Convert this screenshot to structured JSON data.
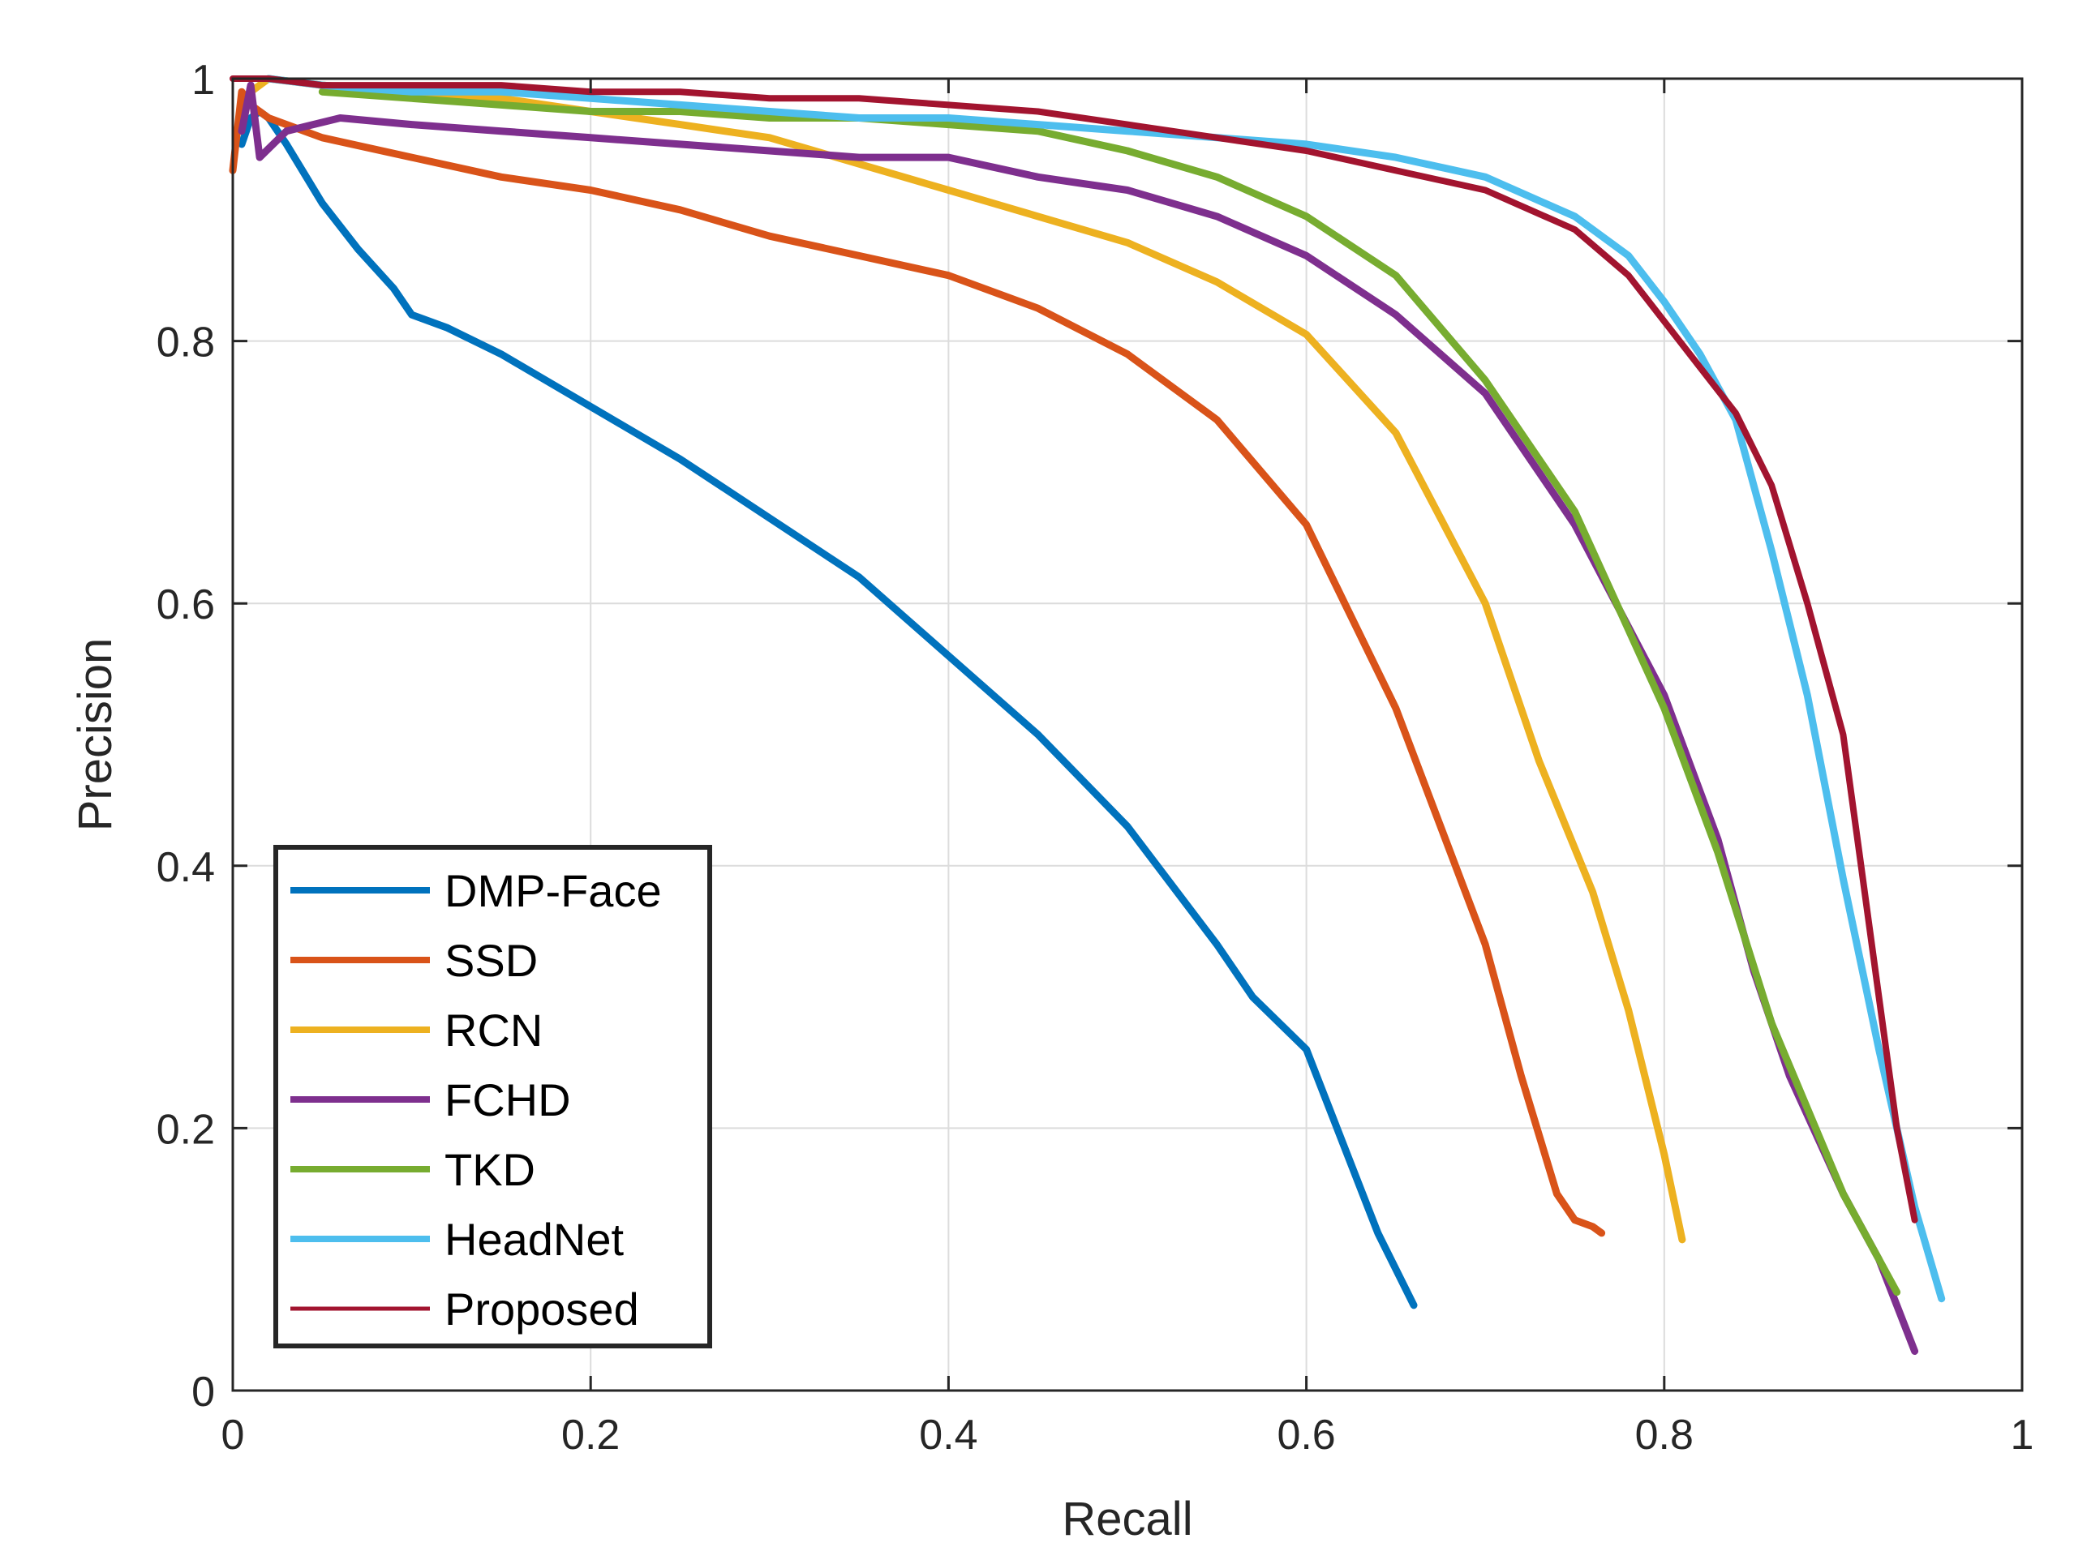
{
  "chart_data": {
    "type": "line",
    "title": "",
    "xlabel": "Recall",
    "ylabel": "Precision",
    "xlim": [
      0,
      1
    ],
    "ylim": [
      0,
      1
    ],
    "xticks": [
      0,
      0.2,
      0.4,
      0.6,
      0.8,
      1
    ],
    "yticks": [
      0,
      0.2,
      0.4,
      0.6,
      0.8,
      1
    ],
    "xtick_labels": [
      "0",
      "0.2",
      "0.4",
      "0.6",
      "0.8",
      "1"
    ],
    "ytick_labels": [
      "0",
      "0.2",
      "0.4",
      "0.6",
      "0.8",
      "1"
    ],
    "grid": true,
    "legend_position": "bottom-left",
    "series": [
      {
        "name": "DMP-Face",
        "color": "#0072BD",
        "x": [
          0.005,
          0.01,
          0.015,
          0.02,
          0.03,
          0.05,
          0.07,
          0.09,
          0.1,
          0.12,
          0.15,
          0.2,
          0.25,
          0.3,
          0.35,
          0.4,
          0.45,
          0.5,
          0.55,
          0.57,
          0.6,
          0.62,
          0.64,
          0.66
        ],
        "y": [
          0.95,
          0.97,
          0.975,
          0.97,
          0.95,
          0.905,
          0.87,
          0.84,
          0.82,
          0.81,
          0.79,
          0.75,
          0.71,
          0.665,
          0.62,
          0.56,
          0.5,
          0.43,
          0.34,
          0.3,
          0.26,
          0.19,
          0.12,
          0.065
        ]
      },
      {
        "name": "SSD",
        "color": "#D95319",
        "x": [
          0.0,
          0.005,
          0.01,
          0.02,
          0.05,
          0.1,
          0.15,
          0.2,
          0.25,
          0.3,
          0.35,
          0.4,
          0.45,
          0.5,
          0.55,
          0.6,
          0.65,
          0.7,
          0.72,
          0.74,
          0.75,
          0.76,
          0.765
        ],
        "y": [
          0.93,
          0.99,
          0.98,
          0.97,
          0.955,
          0.94,
          0.925,
          0.915,
          0.9,
          0.88,
          0.865,
          0.85,
          0.825,
          0.79,
          0.74,
          0.66,
          0.52,
          0.34,
          0.24,
          0.15,
          0.13,
          0.125,
          0.12
        ]
      },
      {
        "name": "RCN",
        "color": "#EDB120",
        "x": [
          0.01,
          0.02,
          0.05,
          0.1,
          0.15,
          0.2,
          0.25,
          0.3,
          0.35,
          0.4,
          0.45,
          0.5,
          0.55,
          0.6,
          0.65,
          0.7,
          0.73,
          0.76,
          0.78,
          0.8,
          0.81
        ],
        "y": [
          0.99,
          1.0,
          0.995,
          0.99,
          0.985,
          0.975,
          0.965,
          0.955,
          0.935,
          0.915,
          0.895,
          0.875,
          0.845,
          0.805,
          0.73,
          0.6,
          0.48,
          0.38,
          0.29,
          0.18,
          0.115
        ]
      },
      {
        "name": "FCHD",
        "color": "#7E2F8E",
        "x": [
          0.005,
          0.01,
          0.015,
          0.03,
          0.06,
          0.1,
          0.15,
          0.2,
          0.25,
          0.3,
          0.35,
          0.4,
          0.45,
          0.5,
          0.55,
          0.6,
          0.65,
          0.7,
          0.75,
          0.8,
          0.83,
          0.85,
          0.87,
          0.9,
          0.92,
          0.94
        ],
        "y": [
          0.96,
          0.995,
          0.94,
          0.96,
          0.97,
          0.965,
          0.96,
          0.955,
          0.95,
          0.945,
          0.94,
          0.94,
          0.925,
          0.915,
          0.895,
          0.865,
          0.82,
          0.76,
          0.66,
          0.53,
          0.42,
          0.32,
          0.24,
          0.15,
          0.1,
          0.03
        ]
      },
      {
        "name": "TKD",
        "color": "#77AC30",
        "x": [
          0.05,
          0.1,
          0.15,
          0.2,
          0.25,
          0.3,
          0.35,
          0.4,
          0.45,
          0.5,
          0.55,
          0.6,
          0.65,
          0.7,
          0.75,
          0.8,
          0.83,
          0.86,
          0.9,
          0.93
        ],
        "y": [
          0.99,
          0.985,
          0.98,
          0.975,
          0.975,
          0.97,
          0.97,
          0.965,
          0.96,
          0.945,
          0.925,
          0.895,
          0.85,
          0.77,
          0.67,
          0.52,
          0.41,
          0.28,
          0.15,
          0.075
        ]
      },
      {
        "name": "HeadNet",
        "color": "#4DBEEE",
        "x": [
          0.02,
          0.05,
          0.1,
          0.15,
          0.2,
          0.25,
          0.3,
          0.35,
          0.4,
          0.45,
          0.5,
          0.55,
          0.6,
          0.65,
          0.7,
          0.75,
          0.78,
          0.8,
          0.82,
          0.84,
          0.86,
          0.88,
          0.9,
          0.92,
          0.94,
          0.955
        ],
        "y": [
          1.0,
          0.995,
          0.99,
          0.99,
          0.985,
          0.98,
          0.975,
          0.97,
          0.97,
          0.965,
          0.96,
          0.955,
          0.95,
          0.94,
          0.925,
          0.895,
          0.865,
          0.83,
          0.79,
          0.74,
          0.64,
          0.53,
          0.39,
          0.26,
          0.14,
          0.07
        ]
      },
      {
        "name": "Proposed",
        "color": "#A2142F",
        "x": [
          0.0,
          0.02,
          0.05,
          0.1,
          0.15,
          0.2,
          0.25,
          0.3,
          0.35,
          0.4,
          0.45,
          0.5,
          0.55,
          0.6,
          0.65,
          0.7,
          0.75,
          0.78,
          0.8,
          0.82,
          0.84,
          0.86,
          0.88,
          0.9,
          0.91,
          0.92,
          0.93,
          0.94
        ],
        "y": [
          1.0,
          1.0,
          0.995,
          0.995,
          0.995,
          0.99,
          0.99,
          0.985,
          0.985,
          0.98,
          0.975,
          0.965,
          0.955,
          0.945,
          0.93,
          0.915,
          0.885,
          0.85,
          0.815,
          0.78,
          0.745,
          0.69,
          0.6,
          0.5,
          0.4,
          0.3,
          0.2,
          0.13
        ]
      }
    ]
  }
}
